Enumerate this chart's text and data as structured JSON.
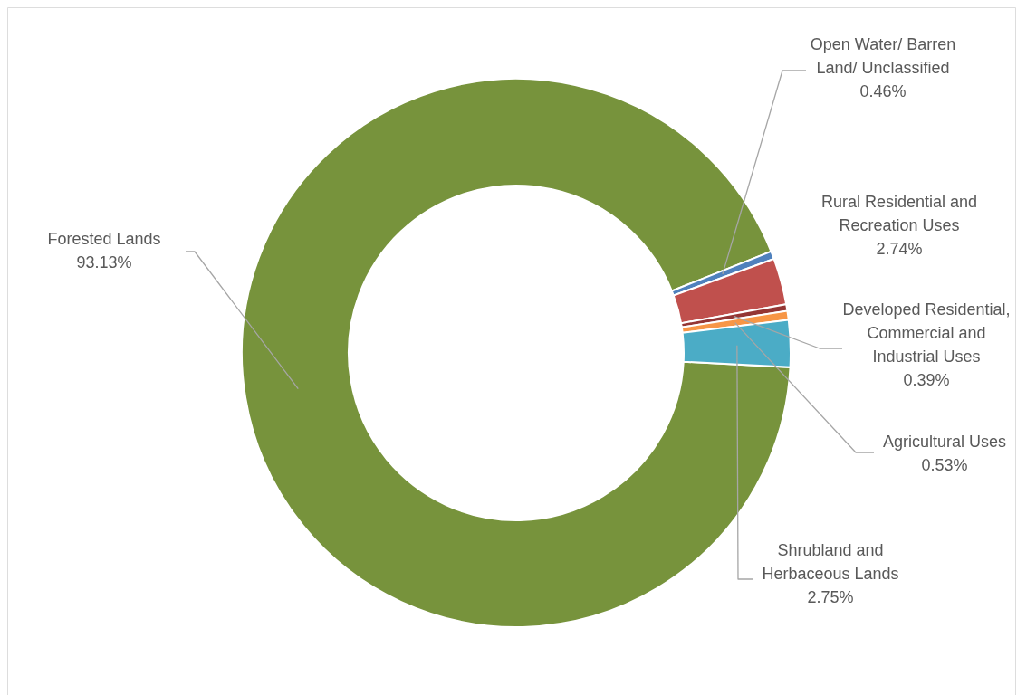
{
  "chart_data": {
    "type": "donut",
    "categories": [
      "Forested Lands",
      "Open Water/ Barren Land/ Unclassified",
      "Rural Residential and Recreation Uses",
      "Developed Residential, Commercial and Industrial Uses",
      "Agricultural Uses",
      "Shrubland and Herbaceous Lands"
    ],
    "values": [
      93.13,
      0.46,
      2.74,
      0.39,
      0.53,
      2.75
    ],
    "colors": [
      "#77933c",
      "#4f81bd",
      "#c0504d",
      "#943634",
      "#f79646",
      "#4bacc6"
    ],
    "value_labels": [
      "93.13%",
      "0.46%",
      "2.74%",
      "0.39%",
      "0.53%",
      "2.75%"
    ],
    "legend": false
  }
}
